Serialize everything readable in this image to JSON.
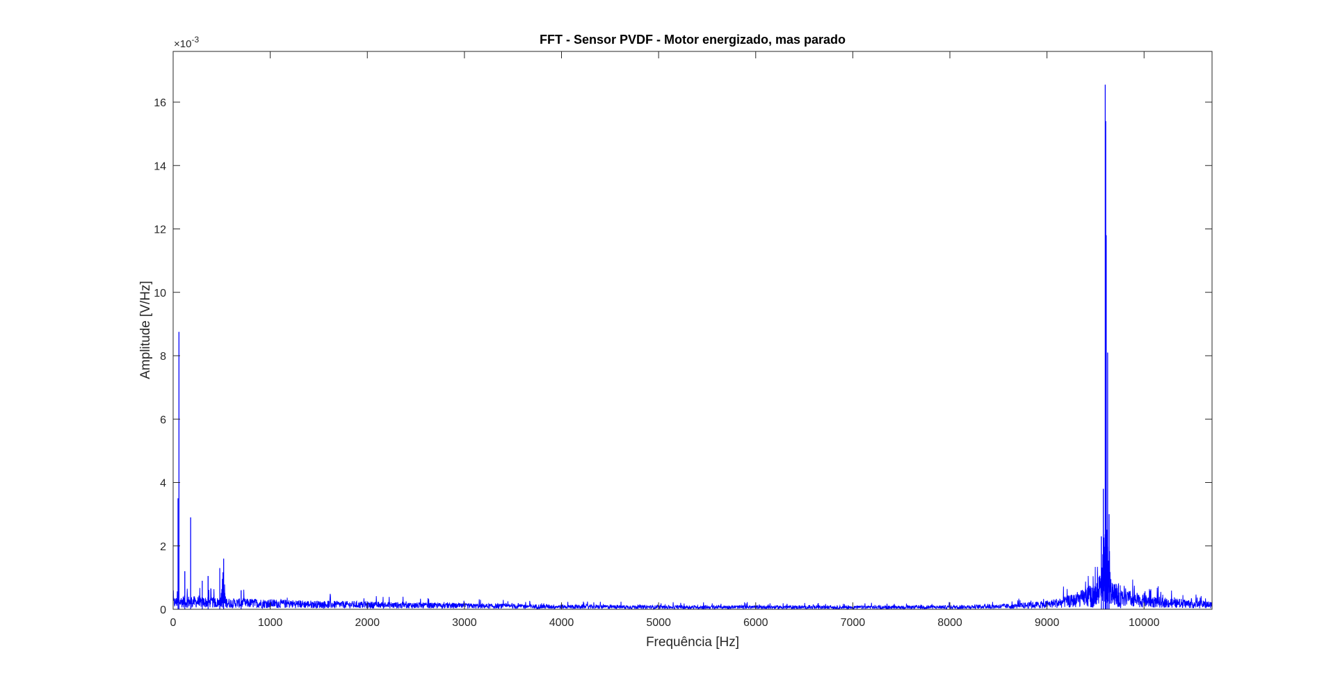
{
  "chart_data": {
    "type": "line",
    "title": "FFT - Sensor PVDF - Motor energizado, mas parado",
    "xlabel": "Frequência [Hz]",
    "ylabel": "Amplitude [V/Hz]",
    "y_exponent_label": "×10",
    "y_exponent_power": "-3",
    "xlim": [
      0,
      10700
    ],
    "ylim": [
      0,
      17.6
    ],
    "y_scale_factor": 0.001,
    "x_ticks": [
      0,
      1000,
      2000,
      3000,
      4000,
      5000,
      6000,
      7000,
      8000,
      9000,
      10000
    ],
    "x_tick_labels": [
      "0",
      "1000",
      "2000",
      "3000",
      "4000",
      "5000",
      "6000",
      "7000",
      "8000",
      "9000",
      "10000"
    ],
    "y_ticks": [
      0,
      2,
      4,
      6,
      8,
      10,
      12,
      14,
      16
    ],
    "y_tick_labels": [
      "0",
      "2",
      "4",
      "6",
      "8",
      "10",
      "12",
      "14",
      "16"
    ],
    "grid": false,
    "box": true,
    "series": [
      {
        "color": "#0000ff",
        "noise_floor": [
          [
            0,
            0.3
          ],
          [
            100,
            0.35
          ],
          [
            300,
            0.32
          ],
          [
            600,
            0.28
          ],
          [
            1000,
            0.26
          ],
          [
            1500,
            0.22
          ],
          [
            2000,
            0.2
          ],
          [
            3000,
            0.15
          ],
          [
            4000,
            0.12
          ],
          [
            5000,
            0.1
          ],
          [
            6000,
            0.1
          ],
          [
            7000,
            0.09
          ],
          [
            8000,
            0.1
          ],
          [
            8600,
            0.14
          ],
          [
            9000,
            0.22
          ],
          [
            9300,
            0.4
          ],
          [
            9500,
            0.7
          ],
          [
            9600,
            1.2
          ],
          [
            9700,
            0.7
          ],
          [
            9900,
            0.4
          ],
          [
            10200,
            0.3
          ],
          [
            10700,
            0.2
          ]
        ],
        "peaks": [
          {
            "x": 60,
            "y": 8.75
          },
          {
            "x": 50,
            "y": 3.5
          },
          {
            "x": 180,
            "y": 2.9
          },
          {
            "x": 120,
            "y": 1.2
          },
          {
            "x": 300,
            "y": 0.9
          },
          {
            "x": 360,
            "y": 1.05
          },
          {
            "x": 480,
            "y": 1.3
          },
          {
            "x": 520,
            "y": 1.6
          },
          {
            "x": 700,
            "y": 0.6
          },
          {
            "x": 9580,
            "y": 3.8
          },
          {
            "x": 9600,
            "y": 16.55
          },
          {
            "x": 9605,
            "y": 15.4
          },
          {
            "x": 9610,
            "y": 11.8
          },
          {
            "x": 9625,
            "y": 8.1
          },
          {
            "x": 9640,
            "y": 3.0
          },
          {
            "x": 9560,
            "y": 2.3
          }
        ]
      }
    ]
  }
}
